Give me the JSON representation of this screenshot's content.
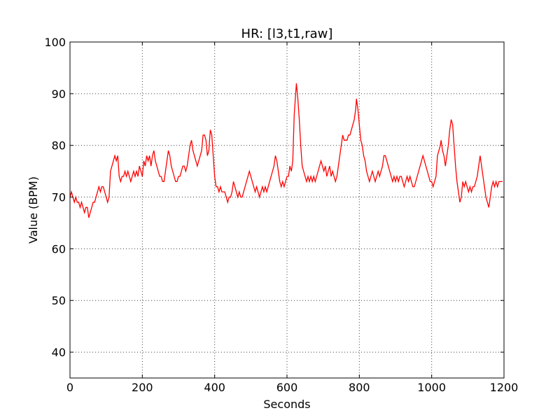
{
  "chart_data": {
    "type": "line",
    "title": "HR: [l3,t1,raw]",
    "xlabel": "Seconds",
    "ylabel": "Value (BPM)",
    "xlim": [
      0,
      1200
    ],
    "ylim": [
      35,
      100
    ],
    "xticks": [
      0,
      200,
      400,
      600,
      800,
      1000,
      1200
    ],
    "yticks": [
      40,
      50,
      60,
      70,
      80,
      90,
      100
    ],
    "grid": true,
    "series": [
      {
        "color": "#ff0000",
        "points": [
          [
            0,
            70
          ],
          [
            4,
            71
          ],
          [
            8,
            70
          ],
          [
            12,
            69
          ],
          [
            16,
            70
          ],
          [
            20,
            69
          ],
          [
            24,
            69
          ],
          [
            28,
            68
          ],
          [
            32,
            69
          ],
          [
            36,
            68
          ],
          [
            40,
            67
          ],
          [
            44,
            68
          ],
          [
            48,
            68
          ],
          [
            52,
            66
          ],
          [
            56,
            67
          ],
          [
            60,
            68
          ],
          [
            64,
            69
          ],
          [
            68,
            69
          ],
          [
            72,
            70
          ],
          [
            76,
            71
          ],
          [
            80,
            72
          ],
          [
            84,
            71
          ],
          [
            88,
            72
          ],
          [
            92,
            72
          ],
          [
            96,
            71
          ],
          [
            100,
            70
          ],
          [
            104,
            69
          ],
          [
            108,
            70
          ],
          [
            112,
            75
          ],
          [
            116,
            76
          ],
          [
            120,
            77
          ],
          [
            124,
            78
          ],
          [
            128,
            77
          ],
          [
            132,
            78
          ],
          [
            136,
            74
          ],
          [
            140,
            73
          ],
          [
            144,
            74
          ],
          [
            148,
            74
          ],
          [
            152,
            75
          ],
          [
            156,
            74
          ],
          [
            160,
            75
          ],
          [
            164,
            74
          ],
          [
            168,
            73
          ],
          [
            172,
            74
          ],
          [
            176,
            75
          ],
          [
            180,
            74
          ],
          [
            184,
            75
          ],
          [
            188,
            74
          ],
          [
            192,
            76
          ],
          [
            196,
            75
          ],
          [
            200,
            74
          ],
          [
            204,
            77
          ],
          [
            208,
            76
          ],
          [
            212,
            78
          ],
          [
            216,
            77
          ],
          [
            220,
            78
          ],
          [
            224,
            76
          ],
          [
            228,
            78
          ],
          [
            232,
            79
          ],
          [
            236,
            77
          ],
          [
            240,
            76
          ],
          [
            244,
            75
          ],
          [
            248,
            74
          ],
          [
            252,
            74
          ],
          [
            256,
            73
          ],
          [
            260,
            73
          ],
          [
            264,
            75
          ],
          [
            268,
            77
          ],
          [
            272,
            79
          ],
          [
            276,
            78
          ],
          [
            280,
            76
          ],
          [
            284,
            75
          ],
          [
            288,
            74
          ],
          [
            292,
            73
          ],
          [
            296,
            73
          ],
          [
            300,
            74
          ],
          [
            304,
            74
          ],
          [
            308,
            75
          ],
          [
            312,
            76
          ],
          [
            316,
            76
          ],
          [
            320,
            75
          ],
          [
            324,
            76
          ],
          [
            328,
            78
          ],
          [
            332,
            80
          ],
          [
            336,
            81
          ],
          [
            340,
            79
          ],
          [
            344,
            78
          ],
          [
            348,
            77
          ],
          [
            352,
            76
          ],
          [
            356,
            77
          ],
          [
            360,
            78
          ],
          [
            364,
            79
          ],
          [
            368,
            82
          ],
          [
            372,
            82
          ],
          [
            376,
            81
          ],
          [
            380,
            78
          ],
          [
            384,
            79
          ],
          [
            388,
            83
          ],
          [
            392,
            82
          ],
          [
            396,
            78
          ],
          [
            400,
            74
          ],
          [
            404,
            72
          ],
          [
            408,
            72
          ],
          [
            412,
            71
          ],
          [
            416,
            72
          ],
          [
            420,
            71
          ],
          [
            424,
            71
          ],
          [
            428,
            71
          ],
          [
            432,
            70
          ],
          [
            436,
            69
          ],
          [
            440,
            70
          ],
          [
            444,
            70
          ],
          [
            448,
            71
          ],
          [
            452,
            73
          ],
          [
            456,
            72
          ],
          [
            460,
            71
          ],
          [
            464,
            70
          ],
          [
            468,
            71
          ],
          [
            472,
            70
          ],
          [
            476,
            70
          ],
          [
            480,
            71
          ],
          [
            484,
            72
          ],
          [
            488,
            73
          ],
          [
            492,
            74
          ],
          [
            496,
            75
          ],
          [
            500,
            74
          ],
          [
            504,
            73
          ],
          [
            508,
            72
          ],
          [
            512,
            71
          ],
          [
            516,
            72
          ],
          [
            520,
            71
          ],
          [
            524,
            70
          ],
          [
            528,
            71
          ],
          [
            532,
            72
          ],
          [
            536,
            71
          ],
          [
            540,
            72
          ],
          [
            544,
            71
          ],
          [
            548,
            72
          ],
          [
            552,
            73
          ],
          [
            556,
            74
          ],
          [
            560,
            75
          ],
          [
            564,
            76
          ],
          [
            568,
            78
          ],
          [
            572,
            77
          ],
          [
            576,
            75
          ],
          [
            580,
            73
          ],
          [
            584,
            72
          ],
          [
            588,
            73
          ],
          [
            592,
            72
          ],
          [
            596,
            73
          ],
          [
            600,
            74
          ],
          [
            604,
            74
          ],
          [
            608,
            76
          ],
          [
            612,
            75
          ],
          [
            616,
            77
          ],
          [
            620,
            86
          ],
          [
            624,
            90
          ],
          [
            626,
            92
          ],
          [
            630,
            89
          ],
          [
            634,
            85
          ],
          [
            638,
            80
          ],
          [
            642,
            76
          ],
          [
            646,
            75
          ],
          [
            650,
            74
          ],
          [
            654,
            73
          ],
          [
            658,
            74
          ],
          [
            662,
            73
          ],
          [
            666,
            74
          ],
          [
            670,
            73
          ],
          [
            674,
            74
          ],
          [
            678,
            73
          ],
          [
            682,
            74
          ],
          [
            686,
            75
          ],
          [
            690,
            76
          ],
          [
            694,
            77
          ],
          [
            698,
            76
          ],
          [
            702,
            75
          ],
          [
            706,
            76
          ],
          [
            710,
            74
          ],
          [
            714,
            75
          ],
          [
            718,
            76
          ],
          [
            722,
            74
          ],
          [
            726,
            75
          ],
          [
            730,
            74
          ],
          [
            734,
            73
          ],
          [
            738,
            74
          ],
          [
            742,
            76
          ],
          [
            746,
            78
          ],
          [
            750,
            80
          ],
          [
            754,
            82
          ],
          [
            758,
            81
          ],
          [
            762,
            81
          ],
          [
            766,
            81
          ],
          [
            770,
            82
          ],
          [
            774,
            82
          ],
          [
            778,
            83
          ],
          [
            782,
            84
          ],
          [
            786,
            85
          ],
          [
            790,
            87
          ],
          [
            792,
            89
          ],
          [
            796,
            87
          ],
          [
            800,
            84
          ],
          [
            804,
            81
          ],
          [
            808,
            80
          ],
          [
            812,
            78
          ],
          [
            816,
            77
          ],
          [
            820,
            75
          ],
          [
            824,
            74
          ],
          [
            828,
            73
          ],
          [
            832,
            74
          ],
          [
            836,
            75
          ],
          [
            840,
            74
          ],
          [
            844,
            73
          ],
          [
            848,
            74
          ],
          [
            852,
            75
          ],
          [
            856,
            74
          ],
          [
            860,
            75
          ],
          [
            864,
            76
          ],
          [
            868,
            78
          ],
          [
            872,
            78
          ],
          [
            876,
            77
          ],
          [
            880,
            76
          ],
          [
            884,
            75
          ],
          [
            888,
            74
          ],
          [
            892,
            73
          ],
          [
            896,
            74
          ],
          [
            900,
            73
          ],
          [
            904,
            74
          ],
          [
            908,
            73
          ],
          [
            912,
            74
          ],
          [
            916,
            74
          ],
          [
            920,
            73
          ],
          [
            924,
            72
          ],
          [
            928,
            73
          ],
          [
            932,
            74
          ],
          [
            936,
            73
          ],
          [
            940,
            74
          ],
          [
            944,
            73
          ],
          [
            948,
            72
          ],
          [
            952,
            72
          ],
          [
            956,
            73
          ],
          [
            960,
            74
          ],
          [
            964,
            75
          ],
          [
            968,
            76
          ],
          [
            972,
            77
          ],
          [
            976,
            78
          ],
          [
            980,
            77
          ],
          [
            984,
            76
          ],
          [
            988,
            75
          ],
          [
            992,
            74
          ],
          [
            996,
            73
          ],
          [
            1000,
            73
          ],
          [
            1004,
            72
          ],
          [
            1008,
            73
          ],
          [
            1012,
            74
          ],
          [
            1016,
            78
          ],
          [
            1020,
            79
          ],
          [
            1024,
            80
          ],
          [
            1026,
            81
          ],
          [
            1030,
            79
          ],
          [
            1034,
            78
          ],
          [
            1038,
            76
          ],
          [
            1042,
            78
          ],
          [
            1046,
            80
          ],
          [
            1050,
            83
          ],
          [
            1054,
            85
          ],
          [
            1058,
            84
          ],
          [
            1062,
            80
          ],
          [
            1066,
            76
          ],
          [
            1070,
            73
          ],
          [
            1074,
            71
          ],
          [
            1078,
            69
          ],
          [
            1082,
            70
          ],
          [
            1086,
            73
          ],
          [
            1090,
            72
          ],
          [
            1094,
            73
          ],
          [
            1098,
            72
          ],
          [
            1102,
            71
          ],
          [
            1106,
            72
          ],
          [
            1110,
            71
          ],
          [
            1114,
            72
          ],
          [
            1118,
            72
          ],
          [
            1122,
            73
          ],
          [
            1126,
            74
          ],
          [
            1130,
            76
          ],
          [
            1134,
            78
          ],
          [
            1138,
            76
          ],
          [
            1142,
            74
          ],
          [
            1146,
            72
          ],
          [
            1150,
            70
          ],
          [
            1154,
            69
          ],
          [
            1158,
            68
          ],
          [
            1162,
            70
          ],
          [
            1166,
            72
          ],
          [
            1170,
            73
          ],
          [
            1174,
            72
          ],
          [
            1178,
            73
          ],
          [
            1182,
            72
          ],
          [
            1186,
            73
          ],
          [
            1190,
            73
          ],
          [
            1196,
            73
          ]
        ]
      }
    ]
  }
}
